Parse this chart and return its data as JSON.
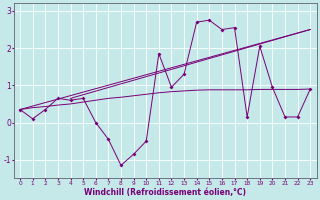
{
  "x": [
    0,
    1,
    2,
    3,
    4,
    5,
    6,
    7,
    8,
    9,
    10,
    11,
    12,
    13,
    14,
    15,
    16,
    17,
    18,
    19,
    20,
    21,
    22,
    23
  ],
  "main": [
    0.35,
    0.1,
    0.35,
    0.65,
    0.6,
    0.65,
    0.0,
    -0.45,
    -1.15,
    -0.85,
    -0.5,
    1.85,
    0.95,
    1.3,
    2.7,
    2.75,
    2.5,
    2.55,
    0.15,
    2.05,
    0.95,
    0.15,
    0.15,
    0.9
  ],
  "flat": [
    0.35,
    0.4,
    0.43,
    0.47,
    0.5,
    0.55,
    0.6,
    0.65,
    0.68,
    0.72,
    0.76,
    0.8,
    0.83,
    0.85,
    0.87,
    0.88,
    0.88,
    0.88,
    0.88,
    0.89,
    0.89,
    0.89,
    0.89,
    0.9
  ],
  "trend1_x": [
    0,
    23
  ],
  "trend1_y": [
    0.35,
    2.5
  ],
  "trend2_x": [
    4,
    23
  ],
  "trend2_y": [
    0.65,
    2.5
  ],
  "color": "#780078",
  "bg_color": "#c5e8e8",
  "grid_color": "#b0d8d8",
  "ylim": [
    -1.5,
    3.2
  ],
  "xlim": [
    -0.5,
    23.5
  ],
  "yticks": [
    -1,
    0,
    1,
    2,
    3
  ],
  "xticks": [
    0,
    1,
    2,
    3,
    4,
    5,
    6,
    7,
    8,
    9,
    10,
    11,
    12,
    13,
    14,
    15,
    16,
    17,
    18,
    19,
    20,
    21,
    22,
    23
  ],
  "xlabel": "Windchill (Refroidissement éolien,°C)"
}
